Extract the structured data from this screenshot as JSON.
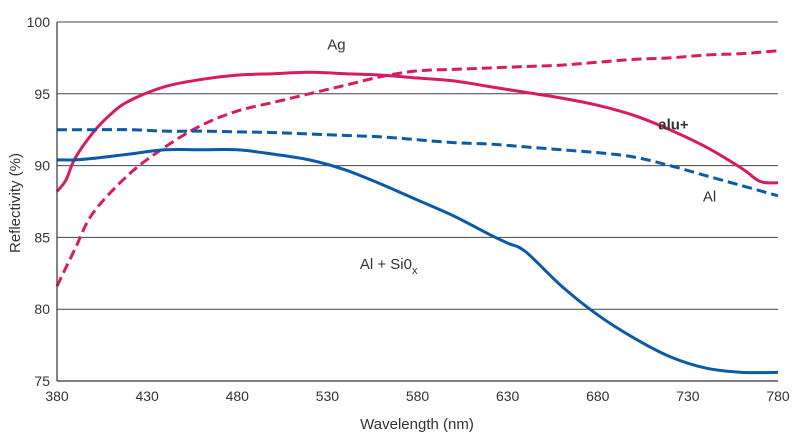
{
  "chart_data": {
    "type": "line",
    "xlabel": "Wavelength (nm)",
    "ylabel": "Reflectivity (%)",
    "xlim": [
      380,
      780
    ],
    "ylim": [
      75,
      100
    ],
    "x_ticks": [
      380,
      430,
      480,
      530,
      580,
      630,
      680,
      730,
      780
    ],
    "y_ticks": [
      75,
      80,
      85,
      90,
      95,
      100
    ],
    "grid": "horizontal",
    "colors": {
      "magenta": "#d81b60",
      "blue": "#0b5aa6"
    },
    "series": [
      {
        "name": "Ag",
        "color": "#d81b60",
        "dash": true,
        "label_text": "Ag",
        "label_color": "#333333",
        "label_bold": false,
        "label_pos": [
          535,
          98.1
        ],
        "x": [
          380,
          390,
          400,
          420,
          440,
          460,
          480,
          500,
          520,
          540,
          560,
          580,
          600,
          620,
          640,
          660,
          680,
          700,
          720,
          740,
          760,
          780
        ],
        "y": [
          81.6,
          84.2,
          86.7,
          89.4,
          91.3,
          92.8,
          93.8,
          94.4,
          95.0,
          95.6,
          96.2,
          96.6,
          96.7,
          96.8,
          96.9,
          97.0,
          97.2,
          97.4,
          97.5,
          97.7,
          97.8,
          98.0
        ]
      },
      {
        "name": "alu+",
        "color": "#d81b60",
        "dash": false,
        "label_text": "alu+",
        "label_color": "#d81b60",
        "label_bold": true,
        "label_pos": [
          722,
          92.5
        ],
        "x": [
          380,
          385,
          390,
          400,
          410,
          420,
          440,
          460,
          480,
          500,
          520,
          540,
          560,
          580,
          600,
          620,
          640,
          660,
          680,
          700,
          720,
          740,
          760,
          770,
          780
        ],
        "y": [
          88.2,
          89.0,
          90.5,
          92.3,
          93.6,
          94.5,
          95.5,
          96.0,
          96.3,
          96.4,
          96.5,
          96.4,
          96.3,
          96.1,
          95.9,
          95.5,
          95.1,
          94.7,
          94.2,
          93.5,
          92.5,
          91.3,
          89.8,
          88.9,
          88.8
        ]
      },
      {
        "name": "Al",
        "color": "#0b5aa6",
        "dash": true,
        "label_text": "Al",
        "label_color": "#333333",
        "label_bold": false,
        "label_pos": [
          742,
          87.5
        ],
        "x": [
          380,
          400,
          420,
          440,
          460,
          480,
          500,
          520,
          540,
          560,
          580,
          600,
          620,
          640,
          660,
          680,
          700,
          720,
          740,
          760,
          780
        ],
        "y": [
          92.5,
          92.5,
          92.5,
          92.4,
          92.4,
          92.35,
          92.3,
          92.2,
          92.1,
          92.0,
          91.8,
          91.6,
          91.5,
          91.3,
          91.1,
          90.9,
          90.6,
          90.0,
          89.3,
          88.6,
          87.9
        ]
      },
      {
        "name": "Al + Si0x",
        "color": "#0b5aa6",
        "dash": false,
        "label_text": "Al + Si0",
        "label_sub": "x",
        "label_color": "#333333",
        "label_bold": false,
        "label_pos": [
          564,
          82.8
        ],
        "x": [
          380,
          390,
          400,
          420,
          440,
          460,
          480,
          500,
          520,
          540,
          560,
          580,
          600,
          620,
          630,
          640,
          660,
          680,
          700,
          720,
          740,
          760,
          780
        ],
        "y": [
          90.4,
          90.4,
          90.5,
          90.8,
          91.1,
          91.1,
          91.1,
          90.8,
          90.4,
          89.7,
          88.7,
          87.6,
          86.5,
          85.2,
          84.6,
          84.0,
          81.6,
          79.6,
          78.0,
          76.7,
          75.9,
          75.6,
          75.6
        ]
      }
    ]
  }
}
